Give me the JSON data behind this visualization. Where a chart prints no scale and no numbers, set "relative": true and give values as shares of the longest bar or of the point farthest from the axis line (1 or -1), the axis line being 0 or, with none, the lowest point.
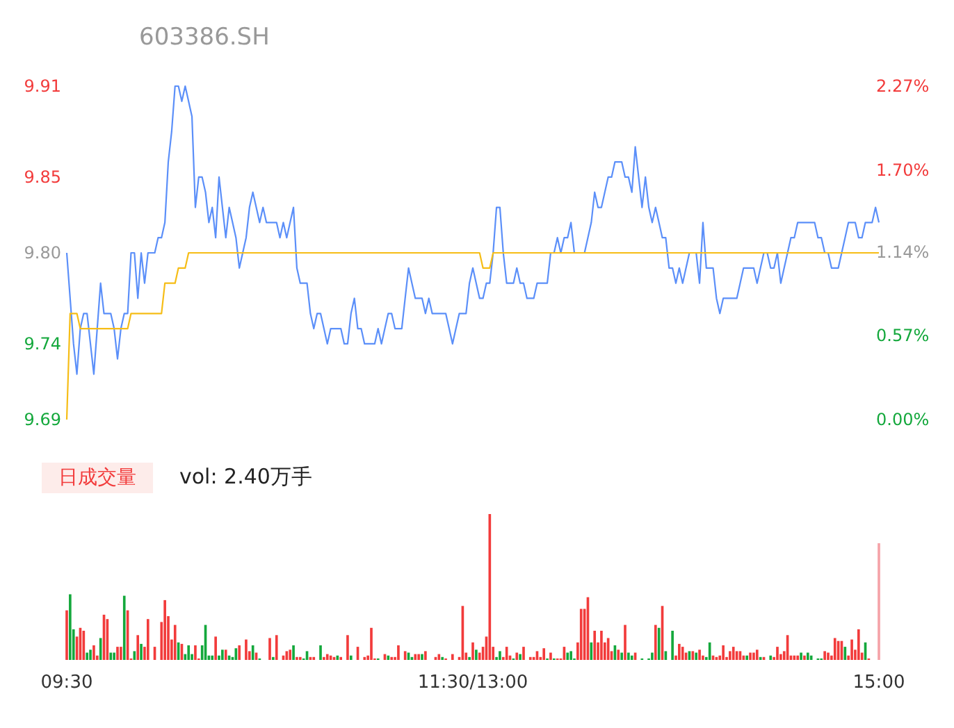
{
  "chart_data": [
    {
      "type": "line",
      "title": "603386.SH",
      "categories": [
        null,
        null,
        null,
        null,
        null,
        null,
        null,
        null,
        null,
        null,
        null,
        null,
        null,
        null,
        null,
        null,
        null,
        null,
        null,
        null,
        null,
        null,
        null,
        null,
        null,
        null,
        null,
        null,
        null,
        null,
        null,
        null,
        null,
        null,
        null,
        null,
        null,
        null,
        null,
        null,
        null,
        null,
        null,
        null,
        null,
        null,
        null,
        null,
        null,
        null,
        null,
        null,
        null,
        null,
        null,
        null,
        null,
        null,
        null,
        null,
        null,
        null,
        null,
        null,
        null,
        null,
        null,
        null,
        null,
        null,
        null,
        null,
        null,
        null,
        null,
        null,
        null,
        null,
        null,
        null,
        null,
        null,
        null,
        null,
        null,
        null,
        null,
        null,
        null,
        null,
        null,
        null,
        null,
        null,
        null,
        null,
        null,
        null,
        null,
        null,
        null,
        null,
        null,
        null,
        null,
        null,
        null,
        null,
        null,
        null,
        null,
        null,
        null,
        null,
        null,
        null,
        null,
        null,
        null,
        null,
        null,
        null,
        null,
        null,
        null,
        null,
        null,
        null,
        null,
        null,
        null,
        null,
        null,
        null,
        null,
        null,
        null,
        null,
        null,
        null,
        null,
        null,
        null,
        null,
        null,
        null,
        null,
        null,
        null,
        null,
        null,
        null,
        null,
        null,
        null,
        null,
        null,
        null,
        null,
        null,
        null,
        null,
        null,
        null,
        null,
        null,
        null,
        null,
        null,
        null,
        null,
        null,
        null,
        null,
        null,
        null,
        null,
        null,
        null,
        null,
        null,
        null,
        null,
        null,
        null,
        null,
        null,
        null,
        null,
        null,
        null,
        null,
        null,
        null,
        null,
        null,
        null,
        null,
        null,
        null,
        null,
        null,
        null,
        null,
        null,
        null,
        null,
        null,
        null,
        null,
        null,
        null,
        null,
        null,
        null,
        null,
        null,
        null,
        null,
        null,
        null,
        null,
        null,
        null,
        null,
        null,
        null,
        null,
        null,
        null,
        null,
        null,
        null,
        null,
        null,
        null,
        null,
        null,
        null,
        null,
        null
      ],
      "ylim": [
        9.69,
        9.91
      ],
      "yticks": [
        9.69,
        9.74,
        {
          "value": 9.8,
          "label": "9.80"
        },
        9.85,
        9.91
      ],
      "y2lim": [
        0,
        2.27
      ],
      "y2ticks": [
        {
          "value": 0,
          "label": "0.00%"
        },
        {
          "value": 0.57,
          "label": "0.57%"
        },
        {
          "value": 1.14,
          "label": "1.14%"
        },
        {
          "value": 1.7,
          "label": "1.70%"
        },
        {
          "value": 2.27,
          "label": "2.27%"
        }
      ],
      "tick_labels": "y",
      "grid": false,
      "marker": "none",
      "line_style": "solid",
      "series": [
        {
          "color": "#5b8ff9",
          "values": [
            9.8,
            9.77,
            9.74,
            9.72,
            9.75,
            9.76,
            9.76,
            9.74,
            9.72,
            9.75,
            9.78,
            9.76,
            9.76,
            9.76,
            9.75,
            9.73,
            9.75,
            9.76,
            9.76,
            9.8,
            9.8,
            9.77,
            9.8,
            9.78,
            9.8,
            9.8,
            9.8,
            9.81,
            9.81,
            9.82,
            9.86,
            9.88,
            9.91,
            9.91,
            9.9,
            9.91,
            9.9,
            9.89,
            9.83,
            9.85,
            9.85,
            9.84,
            9.82,
            9.83,
            9.81,
            9.85,
            9.83,
            9.81,
            9.83,
            9.82,
            9.81,
            9.79,
            9.8,
            9.81,
            9.83,
            9.84,
            9.83,
            9.82,
            9.83,
            9.82,
            9.82,
            9.82,
            9.82,
            9.81,
            9.82,
            9.81,
            9.82,
            9.83,
            9.79,
            9.78,
            9.78,
            9.78,
            9.76,
            9.75,
            9.76,
            9.76,
            9.75,
            9.74,
            9.75,
            9.75,
            9.75,
            9.75,
            9.74,
            9.74,
            9.76,
            9.77,
            9.75,
            9.75,
            9.74,
            9.74,
            9.74,
            9.74,
            9.75,
            9.74,
            9.75,
            9.76,
            9.76,
            9.75,
            9.75,
            9.75,
            9.77,
            9.79,
            9.78,
            9.77,
            9.77,
            9.77,
            9.76,
            9.77,
            9.76,
            9.76,
            9.76,
            9.76,
            9.76,
            9.75,
            9.74,
            9.75,
            9.76,
            9.76,
            9.76,
            9.78,
            9.79,
            9.78,
            9.77,
            9.77,
            9.78,
            9.78,
            9.8,
            9.83,
            9.83,
            9.8,
            9.78,
            9.78,
            9.78,
            9.79,
            9.78,
            9.78,
            9.77,
            9.77,
            9.77,
            9.78,
            9.78,
            9.78,
            9.78,
            9.8,
            9.8,
            9.81,
            9.8,
            9.81,
            9.81,
            9.82,
            9.8,
            9.8,
            9.8,
            9.8,
            9.81,
            9.82,
            9.84,
            9.83,
            9.83,
            9.84,
            9.85,
            9.85,
            9.86,
            9.86,
            9.86,
            9.85,
            9.85,
            9.84,
            9.87,
            9.85,
            9.83,
            9.85,
            9.83,
            9.82,
            9.83,
            9.82,
            9.81,
            9.81,
            9.79,
            9.79,
            9.78,
            9.79,
            9.78,
            9.79,
            9.8,
            9.8,
            9.8,
            9.78,
            9.82,
            9.79,
            9.79,
            9.79,
            9.77,
            9.76,
            9.77,
            9.77,
            9.77,
            9.77,
            9.77,
            9.78,
            9.79,
            9.79,
            9.79,
            9.79,
            9.78,
            9.79,
            9.8,
            9.8,
            9.79,
            9.79,
            9.8,
            9.78,
            9.79,
            9.8,
            9.81,
            9.81,
            9.82,
            9.82,
            9.82,
            9.82,
            9.82,
            9.82,
            9.81,
            9.81,
            9.8,
            9.8,
            9.79,
            9.79,
            9.79,
            9.8,
            9.81,
            9.82,
            9.82,
            9.82,
            9.81,
            9.81,
            9.82,
            9.82,
            9.82,
            9.83,
            9.82
          ]
        },
        {
          "color": "#f6bd16",
          "values": [
            9.69,
            9.76,
            9.76,
            9.76,
            9.75,
            9.75,
            9.75,
            9.75,
            9.75,
            9.75,
            9.75,
            9.75,
            9.75,
            9.75,
            9.75,
            9.75,
            9.75,
            9.75,
            9.75,
            9.76,
            9.76,
            9.76,
            9.76,
            9.76,
            9.76,
            9.76,
            9.76,
            9.76,
            9.76,
            9.78,
            9.78,
            9.78,
            9.78,
            9.79,
            9.79,
            9.79,
            9.8,
            9.8,
            9.8,
            9.8,
            9.8,
            9.8,
            9.8,
            9.8,
            9.8,
            9.8,
            9.8,
            9.8,
            9.8,
            9.8,
            9.8,
            9.8,
            9.8,
            9.8,
            9.8,
            9.8,
            9.8,
            9.8,
            9.8,
            9.8,
            9.8,
            9.8,
            9.8,
            9.8,
            9.8,
            9.8,
            9.8,
            9.8,
            9.8,
            9.8,
            9.8,
            9.8,
            9.8,
            9.8,
            9.8,
            9.8,
            9.8,
            9.8,
            9.8,
            9.8,
            9.8,
            9.8,
            9.8,
            9.8,
            9.8,
            9.8,
            9.8,
            9.8,
            9.8,
            9.8,
            9.8,
            9.8,
            9.8,
            9.8,
            9.8,
            9.8,
            9.8,
            9.8,
            9.8,
            9.8,
            9.8,
            9.8,
            9.8,
            9.8,
            9.8,
            9.8,
            9.8,
            9.8,
            9.8,
            9.8,
            9.8,
            9.8,
            9.8,
            9.8,
            9.8,
            9.8,
            9.8,
            9.8,
            9.8,
            9.8,
            9.8,
            9.8,
            9.8,
            9.79,
            9.79,
            9.79,
            9.8,
            9.8,
            9.8,
            9.8,
            9.8,
            9.8,
            9.8,
            9.8,
            9.8,
            9.8,
            9.8,
            9.8,
            9.8,
            9.8,
            9.8,
            9.8,
            9.8,
            9.8,
            9.8,
            9.8,
            9.8,
            9.8,
            9.8,
            9.8,
            9.8,
            9.8,
            9.8,
            9.8,
            9.8,
            9.8,
            9.8,
            9.8,
            9.8,
            9.8,
            9.8,
            9.8,
            9.8,
            9.8,
            9.8,
            9.8,
            9.8,
            9.8,
            9.8,
            9.8,
            9.8,
            9.8,
            9.8,
            9.8,
            9.8,
            9.8,
            9.8,
            9.8,
            9.8,
            9.8,
            9.8,
            9.8,
            9.8,
            9.8,
            9.8,
            9.8,
            9.8,
            9.8,
            9.8,
            9.8,
            9.8,
            9.8,
            9.8,
            9.8,
            9.8,
            9.8,
            9.8,
            9.8,
            9.8,
            9.8,
            9.8,
            9.8,
            9.8,
            9.8,
            9.8,
            9.8,
            9.8,
            9.8,
            9.8,
            9.8,
            9.8,
            9.8,
            9.8,
            9.8,
            9.8,
            9.8,
            9.8,
            9.8,
            9.8,
            9.8,
            9.8,
            9.8,
            9.8,
            9.8,
            9.8,
            9.8,
            9.8,
            9.8,
            9.8,
            9.8,
            9.8,
            9.8,
            9.8,
            9.8,
            9.8,
            9.8,
            9.8,
            9.8,
            9.8,
            9.8,
            9.8
          ]
        }
      ]
    },
    {
      "type": "bar",
      "title": "日成交量",
      "subtitle": "vol: 2.40万手",
      "relative": true,
      "tick_labels": "x",
      "categories": [
        "09:30",
        null,
        null,
        null,
        null,
        null,
        null,
        null,
        null,
        null,
        null,
        null,
        null,
        null,
        null,
        null,
        null,
        null,
        null,
        null,
        null,
        null,
        null,
        null,
        null,
        null,
        null,
        null,
        null,
        null,
        null,
        null,
        null,
        null,
        null,
        null,
        null,
        null,
        null,
        null,
        null,
        null,
        null,
        null,
        null,
        null,
        null,
        null,
        null,
        null,
        null,
        null,
        null,
        null,
        null,
        null,
        null,
        null,
        null,
        null,
        null,
        null,
        null,
        null,
        null,
        null,
        null,
        null,
        null,
        null,
        null,
        null,
        null,
        null,
        null,
        null,
        null,
        null,
        null,
        null,
        null,
        null,
        null,
        null,
        null,
        null,
        null,
        null,
        null,
        null,
        null,
        null,
        null,
        null,
        null,
        null,
        null,
        null,
        null,
        null,
        null,
        null,
        null,
        null,
        null,
        null,
        null,
        null,
        null,
        null,
        null,
        null,
        null,
        null,
        null,
        null,
        null,
        null,
        null,
        null,
        "11:30/13:00",
        null,
        null,
        null,
        null,
        null,
        null,
        null,
        null,
        null,
        null,
        null,
        null,
        null,
        null,
        null,
        null,
        null,
        null,
        null,
        null,
        null,
        null,
        null,
        null,
        null,
        null,
        null,
        null,
        null,
        null,
        null,
        null,
        null,
        null,
        null,
        null,
        null,
        null,
        null,
        null,
        null,
        null,
        null,
        null,
        null,
        null,
        null,
        null,
        null,
        null,
        null,
        null,
        null,
        null,
        null,
        null,
        null,
        null,
        null,
        null,
        null,
        null,
        null,
        null,
        null,
        null,
        null,
        null,
        null,
        null,
        null,
        null,
        null,
        null,
        null,
        null,
        null,
        null,
        null,
        null,
        null,
        null,
        null,
        null,
        null,
        null,
        null,
        null,
        null,
        null,
        null,
        null,
        null,
        null,
        null,
        null,
        null,
        null,
        null,
        null,
        null,
        null,
        null,
        null,
        null,
        null,
        null,
        null,
        null,
        null,
        null,
        null,
        null,
        null,
        null,
        null,
        null,
        null,
        null,
        "15:00"
      ],
      "values": [
        0.34,
        0.45,
        0.21,
        0.16,
        0.22,
        0.2,
        0.05,
        0.07,
        0.1,
        0.03,
        0.15,
        0.31,
        0.28,
        0.05,
        0.05,
        0.09,
        0.09,
        0.44,
        0.34,
        0.01,
        0.06,
        0.17,
        0.11,
        0.09,
        0.28,
        null,
        0.09,
        null,
        0.26,
        0.41,
        0.3,
        0.14,
        0.24,
        0.12,
        0.11,
        0.04,
        0.1,
        0.04,
        0.1,
        0.01,
        0.1,
        0.24,
        0.03,
        0.03,
        0.16,
        0.03,
        0.07,
        0.07,
        0.03,
        0.02,
        0.08,
        0.1,
        null,
        0.14,
        0.06,
        0.1,
        0.05,
        0.01,
        null,
        null,
        0.15,
        0.02,
        0.17,
        null,
        0.03,
        0.06,
        0.07,
        0.1,
        0.02,
        0.02,
        0.01,
        0.06,
        0.02,
        0.02,
        null,
        0.1,
        0.02,
        0.04,
        0.03,
        0.02,
        0.03,
        0.02,
        null,
        0.17,
        0.03,
        null,
        0.09,
        null,
        0.02,
        0.03,
        0.22,
        0.01,
        0.01,
        null,
        0.04,
        0.03,
        0.02,
        0.02,
        0.1,
        null,
        0.06,
        0.05,
        0.02,
        0.04,
        0.04,
        0.04,
        0.06,
        null,
        null,
        0.02,
        0.04,
        0.02,
        0.01,
        null,
        0.04,
        null,
        0.02,
        0.37,
        0.05,
        0.02,
        0.12,
        0.07,
        0.05,
        0.09,
        0.16,
        1,
        0.09,
        0.02,
        0.06,
        0.02,
        0.09,
        0.03,
        0.01,
        0.05,
        0.04,
        0.09,
        null,
        0.02,
        0.02,
        0.06,
        0.02,
        0.08,
        0.01,
        0.05,
        0.01,
        0.01,
        0.01,
        0.09,
        0.05,
        0.06,
        0.01,
        0.12,
        0.35,
        0.35,
        0.43,
        0.12,
        0.2,
        0.12,
        0.2,
        0.12,
        0.15,
        0.06,
        0.1,
        0.07,
        0.05,
        0.24,
        0.05,
        0.03,
        0.05,
        null,
        0.01,
        null,
        0.01,
        0.05,
        0.24,
        0.22,
        0.37,
        0.06,
        null,
        0.2,
        0.03,
        0.11,
        0.09,
        0.05,
        0.06,
        0.06,
        0.05,
        0.07,
        0.03,
        0.02,
        0.12,
        0.03,
        0.02,
        0.03,
        0.1,
        0.02,
        0.06,
        0.09,
        0.06,
        0.06,
        0.03,
        0.03,
        0.05,
        0.05,
        0.07,
        0.02,
        0.02,
        null,
        0.03,
        0.02,
        0.09,
        0.04,
        0.06,
        0.17,
        0.03,
        0.03,
        0.03,
        0.05,
        0.03,
        0.05,
        0.03,
        null,
        0.01,
        0.01,
        0.06,
        0.05,
        0.03,
        0.15,
        0.13,
        0.13,
        0.09,
        0.03,
        0.14,
        0.07,
        0.21,
        0.05,
        0.12,
        0.01,
        null,
        null,
        0.8
      ],
      "colors": [
        "#f23b3b",
        "#14a83c",
        "#14a83c",
        "#f23b3b",
        "#f23b3b",
        "#f23b3b",
        "#14a83c",
        "#14a83c",
        "#f23b3b",
        "#f23b3b",
        "#14a83c",
        "#f23b3b",
        "#f23b3b",
        "#14a83c",
        "#14a83c",
        "#f23b3b",
        "#f23b3b",
        "#14a83c",
        "#f23b3b",
        "#f23b3b",
        "#14a83c",
        "#f23b3b",
        "#14a83c",
        "#f23b3b",
        "#f23b3b",
        null,
        "#f23b3b",
        null,
        "#f23b3b",
        "#f23b3b",
        "#f23b3b",
        "#f23b3b",
        "#f23b3b",
        "#14a83c",
        "#f23b3b",
        "#14a83c",
        "#14a83c",
        "#14a83c",
        "#f23b3b",
        "#f23b3b",
        "#14a83c",
        "#14a83c",
        "#14a83c",
        "#14a83c",
        "#f23b3b",
        "#14a83c",
        "#14a83c",
        "#f23b3b",
        "#14a83c",
        "#14a83c",
        "#14a83c",
        "#f23b3b",
        null,
        "#f23b3b",
        "#f23b3b",
        "#14a83c",
        "#f23b3b",
        "#14a83c",
        null,
        null,
        "#f23b3b",
        "#14a83c",
        "#f23b3b",
        null,
        "#f23b3b",
        "#f23b3b",
        "#f23b3b",
        "#14a83c",
        "#f23b3b",
        "#f23b3b",
        "#14a83c",
        "#14a83c",
        "#f23b3b",
        "#f23b3b",
        null,
        "#14a83c",
        "#f23b3b",
        "#f23b3b",
        "#f23b3b",
        "#f23b3b",
        "#14a83c",
        "#f23b3b",
        null,
        "#f23b3b",
        "#14a83c",
        null,
        "#f23b3b",
        null,
        "#f23b3b",
        "#f23b3b",
        "#f23b3b",
        "#f23b3b",
        "#14a83c",
        null,
        "#f23b3b",
        "#14a83c",
        "#f23b3b",
        "#f23b3b",
        "#f23b3b",
        null,
        "#f23b3b",
        "#14a83c",
        "#14a83c",
        "#f23b3b",
        "#f23b3b",
        "#14a83c",
        "#f23b3b",
        null,
        null,
        "#f23b3b",
        "#f23b3b",
        "#14a83c",
        "#f23b3b",
        null,
        "#f23b3b",
        null,
        "#f23b3b",
        "#f23b3b",
        "#f23b3b",
        "#14a83c",
        "#f23b3b",
        "#14a83c",
        "#f23b3b",
        "#f23b3b",
        "#f23b3b",
        "#f23b3b",
        "#f23b3b",
        "#14a83c",
        "#14a83c",
        "#f23b3b",
        "#f23b3b",
        "#f23b3b",
        "#14a83c",
        "#f23b3b",
        "#14a83c",
        "#f23b3b",
        null,
        "#f23b3b",
        "#f23b3b",
        "#f23b3b",
        "#f23b3b",
        "#f23b3b",
        "#14a83c",
        "#f23b3b",
        "#14a83c",
        "#f23b3b",
        "#f23b3b",
        "#f23b3b",
        "#14a83c",
        "#14a83c",
        "#14a83c",
        "#f23b3b",
        "#f23b3b",
        "#f23b3b",
        "#f23b3b",
        "#14a83c",
        "#f23b3b",
        "#f23b3b",
        "#f23b3b",
        "#f23b3b",
        "#f23b3b",
        "#f23b3b",
        "#14a83c",
        "#f23b3b",
        "#14a83c",
        "#f23b3b",
        "#14a83c",
        "#14a83c",
        "#f23b3b",
        null,
        "#14a83c",
        null,
        "#14a83c",
        "#14a83c",
        "#f23b3b",
        "#14a83c",
        "#f23b3b",
        "#14a83c",
        null,
        "#14a83c",
        "#f23b3b",
        "#f23b3b",
        "#f23b3b",
        "#f23b3b",
        "#14a83c",
        "#f23b3b",
        "#14a83c",
        "#f23b3b",
        "#f23b3b",
        "#14a83c",
        "#14a83c",
        "#f23b3b",
        "#f23b3b",
        "#f23b3b",
        "#f23b3b",
        "#f23b3b",
        "#f23b3b",
        "#f23b3b",
        "#f23b3b",
        "#f23b3b",
        "#f23b3b",
        "#14a83c",
        "#f23b3b",
        "#f23b3b",
        "#f23b3b",
        "#14a83c",
        "#f23b3b",
        null,
        "#14a83c",
        "#f23b3b",
        "#f23b3b",
        "#f23b3b",
        "#f23b3b",
        "#f23b3b",
        "#f23b3b",
        "#f23b3b",
        "#f23b3b",
        "#14a83c",
        "#f23b3b",
        "#14a83c",
        "#14a83c",
        null,
        "#14a83c",
        "#14a83c",
        "#f23b3b",
        "#f23b3b",
        "#f23b3b",
        "#f23b3b",
        "#f23b3b",
        "#f23b3b",
        "#14a83c",
        "#f23b3b",
        "#f23b3b",
        "#f23b3b",
        "#f23b3b",
        "#f23b3b",
        "#14a83c",
        "#f23b3b",
        null,
        null,
        "#f5a3a8"
      ]
    }
  ]
}
